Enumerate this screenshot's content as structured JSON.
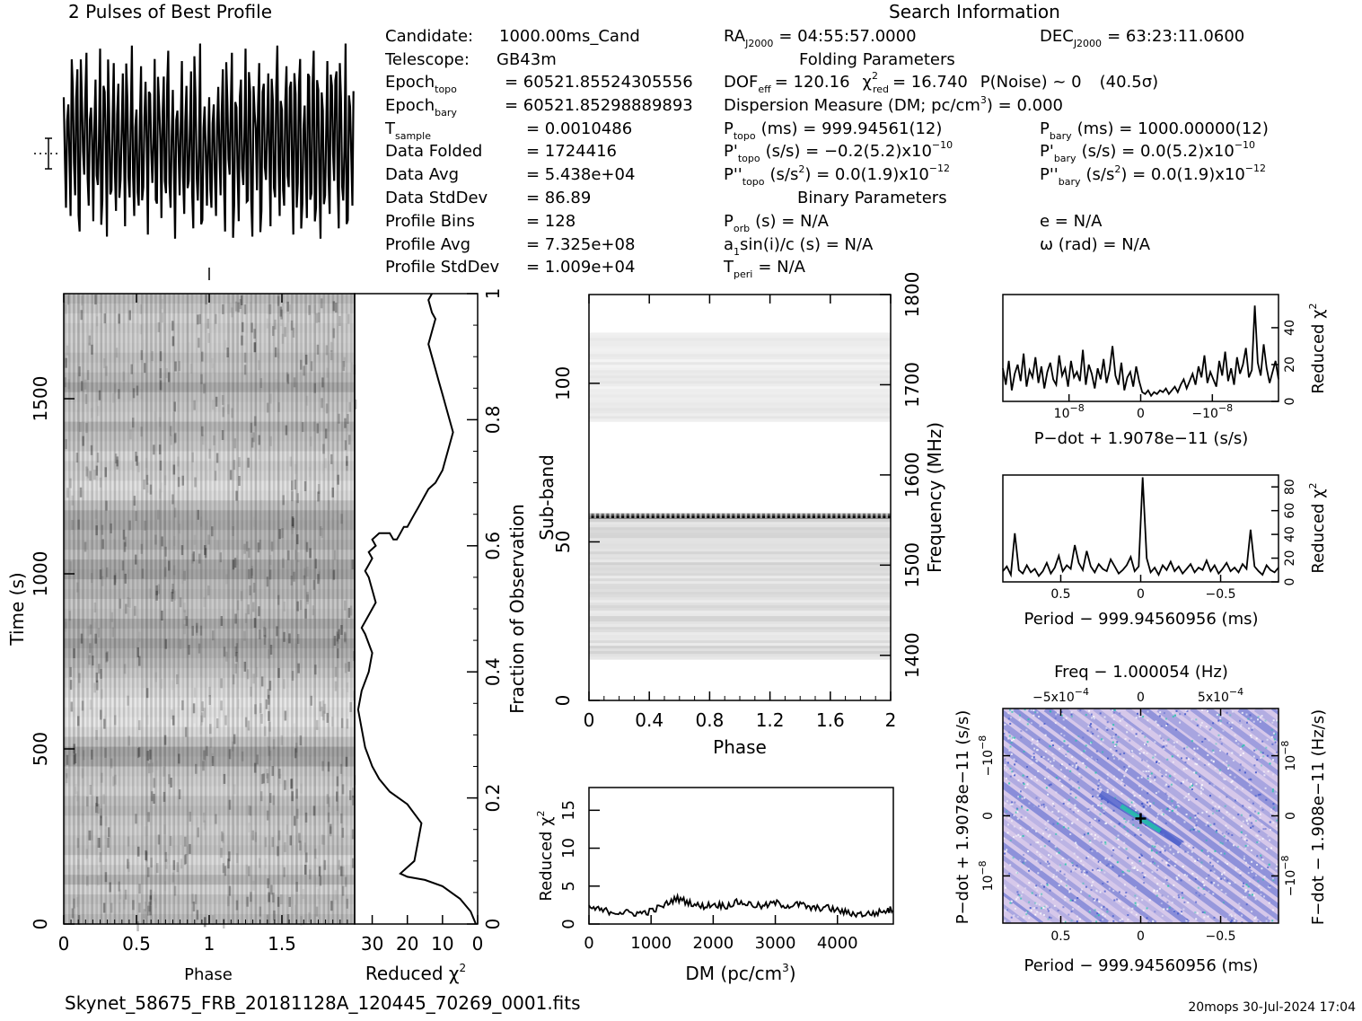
{
  "header": {
    "profile_title": "2 Pulses of Best Profile",
    "search_title": "Search Information",
    "filename": "Skynet_58675_FRB_20181128A_120445_70269_0001.fits",
    "footer_right": "20mops 30-Jul-2024 17:04"
  },
  "info_left": [
    {
      "label": "Candidate:",
      "value": "1000.00ms_Cand"
    },
    {
      "label": "Telescope:",
      "value": "GB43m"
    },
    {
      "label": "Epoch",
      "sub": "topo",
      "value": "= 60521.85524305556"
    },
    {
      "label": "Epoch",
      "sub": "bary",
      "value": "= 60521.85298889893"
    },
    {
      "label": "T",
      "sub": "sample",
      "value": "=  0.0010486"
    },
    {
      "label": "Data Folded",
      "value": "=  1724416"
    },
    {
      "label": "Data Avg",
      "value": "=  5.438e+04"
    },
    {
      "label": "Data StdDev",
      "value": "=  86.89"
    },
    {
      "label": "Profile Bins",
      "value": "=  128"
    },
    {
      "label": "Profile Avg",
      "value": "=  7.325e+08"
    },
    {
      "label": "Profile StdDev",
      "value": "=  1.009e+04"
    }
  ],
  "info_mid": {
    "ra": "RA",
    "ra_sub": "J2000",
    "ra_val": "= 04:55:57.0000",
    "folding_title": "Folding Parameters",
    "dof": "DOF",
    "dof_sub": "eff",
    "dof_val": "= 120.16",
    "chi": "χ",
    "chi_sup": "2",
    "chi_sub": "red",
    "chi_val": "= 16.740",
    "pnoise": "P(Noise) ~ 0",
    "sigma": "(40.5σ)",
    "dm_line": "Dispersion Measure (DM; pc/cm",
    "dm_sup": "3",
    "dm_end": ") = 0.000",
    "p_topo_label": "P",
    "p_topo_sub": "topo",
    "p_topo_val": "(ms) =  999.94561(12)",
    "pd_topo_label": "P'",
    "pd_topo_sub": "topo",
    "pd_topo_val": "(s/s) = −0.2(5.2)x10",
    "pd_topo_exp": "−10",
    "pdd_topo_label": "P''",
    "pdd_topo_sub": "topo",
    "pdd_topo_val": "(s/s",
    "pdd_topo_sup": "2",
    "pdd_topo_rest": ") = 0.0(1.9)x10",
    "pdd_topo_exp": "−12",
    "binary_title": "Binary Parameters",
    "porb": "P",
    "porb_sub": "orb",
    "porb_val": "(s) = N/A",
    "a1": "a",
    "a1_sub": "1",
    "a1_val": "sin(i)/c (s) = N/A",
    "tperi": "T",
    "tperi_sub": "peri",
    "tperi_val": "= N/A"
  },
  "info_right": {
    "dec": "DEC",
    "dec_sub": "J2000",
    "dec_val": "= 63:23:11.0600",
    "p_bary_label": "P",
    "p_bary_sub": "bary",
    "p_bary_val": "(ms) =  1000.00000(12)",
    "pd_bary_label": "P'",
    "pd_bary_sub": "bary",
    "pd_bary_val": "(s/s) = 0.0(5.2)x10",
    "pd_bary_exp": "−10",
    "pdd_bary_label": "P''",
    "pdd_bary_sub": "bary",
    "pdd_bary_val": "(s/s",
    "pdd_bary_sup": "2",
    "pdd_bary_rest": ") = 0.0(1.9)x10",
    "pdd_bary_exp": "−12",
    "e_val": "e = N/A",
    "omega_val": "ω (rad) = N/A"
  },
  "chart_data": [
    {
      "id": "profile",
      "type": "line",
      "title": "2 Pulses of Best Profile",
      "series": [
        {
          "x": [
            0.0,
            0.0156,
            0.0312,
            0.0469,
            0.0625,
            0.0781,
            0.0938,
            0.1094,
            0.125,
            0.1406,
            0.1562,
            0.1719,
            0.1875,
            0.2031,
            0.2188,
            0.2344,
            0.25,
            0.2656,
            0.2812,
            0.2969,
            0.3125,
            0.3281,
            0.3438,
            0.3594,
            0.375,
            0.3906,
            0.4062,
            0.4219,
            0.4375,
            0.4531,
            0.4688,
            0.4844,
            0.5,
            0.5156,
            0.5312,
            0.5469,
            0.5625,
            0.5781,
            0.5938,
            0.6094,
            0.625,
            0.6406,
            0.6562,
            0.6719,
            0.6875,
            0.7031,
            0.7188,
            0.7344,
            0.75,
            0.7656,
            0.7812,
            0.7969,
            0.8125,
            0.8281,
            0.8438,
            0.8594,
            0.875,
            0.8906,
            0.9062,
            0.9219,
            0.9375,
            0.9531,
            0.9688,
            0.9844
          ],
          "values": [
            0.45,
            -0.62,
            0.38,
            -0.7,
            0.55,
            -0.5,
            0.72,
            -0.85,
            0.4,
            -0.3,
            0.88,
            -0.6,
            0.35,
            -0.75,
            0.62,
            -0.4,
            0.92,
            -0.55,
            0.5,
            -0.9,
            0.3,
            -0.45,
            0.78,
            -0.65,
            0.58,
            -0.35,
            0.68,
            -0.8,
            0.42,
            -0.52,
            0.95,
            -0.7,
            0.33,
            -0.6,
            0.75,
            -0.42,
            0.6,
            -0.88,
            0.48,
            -0.38,
            0.82,
            -0.58,
            0.37,
            -0.72,
            0.65,
            -0.48,
            0.9,
            -0.62,
            0.52,
            -0.92,
            0.32,
            -0.5,
            0.8,
            -0.68,
            0.56,
            -0.36,
            0.7,
            -0.82,
            0.44,
            -0.55,
            0.97,
            -0.74,
            0.36,
            -0.6
          ]
        }
      ]
    },
    {
      "id": "time-phase",
      "type": "heatmap",
      "xlabel": "Phase",
      "ylabel": "Time (s)",
      "xlim": [
        0,
        2
      ],
      "ylim": [
        0,
        1800
      ],
      "x_ticks": [
        "0",
        "0.5",
        "1",
        "1.5"
      ],
      "y_ticks": [
        "0",
        "500",
        "1000",
        "1500"
      ],
      "rows": 64,
      "row_darkness": [
        0.55,
        0.45,
        0.5,
        0.35,
        0.6,
        0.4,
        0.3,
        0.5,
        0.45,
        0.38,
        0.42,
        0.55,
        0.48,
        0.35,
        0.4,
        0.45,
        0.7,
        0.75,
        0.5,
        0.3,
        0.2,
        0.25,
        0.2,
        0.3,
        0.35,
        0.45,
        0.55,
        0.65,
        0.75,
        0.6,
        0.7,
        0.5,
        0.45,
        0.6,
        0.55,
        0.75,
        0.7,
        0.5,
        0.65,
        0.6,
        0.72,
        0.68,
        0.5,
        0.3,
        0.25,
        0.35,
        0.4,
        0.3,
        0.45,
        0.5,
        0.62,
        0.4,
        0.45,
        0.5,
        0.7,
        0.55,
        0.45,
        0.5,
        0.4,
        0.38,
        0.42,
        0.35,
        0.45,
        0.55
      ]
    },
    {
      "id": "time-chi2",
      "type": "line",
      "xlabel": "Reduced χ",
      "xlabel_sup": "2",
      "ylabel": "Fraction of Observation",
      "xlim": [
        35,
        0
      ],
      "ylim": [
        0,
        1
      ],
      "x_ticks": [
        "30",
        "20",
        "10",
        "0"
      ],
      "y_ticks": [
        "0",
        "0.2",
        "0.4",
        "0.6",
        "0.8",
        "1"
      ],
      "x": [
        0.5,
        2,
        5,
        10,
        15,
        20,
        22,
        18,
        17,
        16,
        20,
        25,
        28,
        30,
        32,
        33,
        34,
        33,
        31,
        30,
        32,
        33,
        31,
        29,
        30,
        31,
        32,
        31,
        30,
        31,
        29,
        30,
        28,
        27,
        26,
        25,
        24,
        23,
        22,
        21,
        20,
        19,
        18,
        17,
        16,
        15,
        14,
        12,
        10,
        9,
        8,
        7,
        8,
        9,
        10,
        11,
        12,
        13,
        14,
        13,
        12,
        13,
        14,
        13
      ],
      "y": [
        0.0,
        0.02,
        0.04,
        0.06,
        0.07,
        0.075,
        0.08,
        0.1,
        0.13,
        0.16,
        0.19,
        0.21,
        0.23,
        0.25,
        0.28,
        0.31,
        0.34,
        0.37,
        0.4,
        0.43,
        0.46,
        0.47,
        0.49,
        0.51,
        0.53,
        0.55,
        0.56,
        0.57,
        0.58,
        0.59,
        0.6,
        0.61,
        0.62,
        0.62,
        0.62,
        0.62,
        0.61,
        0.61,
        0.62,
        0.63,
        0.63,
        0.64,
        0.65,
        0.66,
        0.67,
        0.68,
        0.69,
        0.7,
        0.72,
        0.74,
        0.76,
        0.78,
        0.8,
        0.82,
        0.84,
        0.86,
        0.88,
        0.9,
        0.92,
        0.94,
        0.96,
        0.97,
        0.99,
        1.0
      ]
    },
    {
      "id": "subband-phase",
      "type": "heatmap",
      "xlabel": "Phase",
      "ylabel": "Sub-band",
      "y2label": "Frequency (MHz)",
      "xlim": [
        0,
        2
      ],
      "ylim": [
        0,
        128
      ],
      "y2lim": [
        1350,
        1800
      ],
      "x_ticks": [
        "0",
        "0.4",
        "0.8",
        "1.2",
        "1.6",
        "2"
      ],
      "y_ticks": [
        "0",
        "50",
        "100"
      ],
      "y2_ticks": [
        "1400",
        "1500",
        "1600",
        "1700",
        "1800"
      ],
      "bands": [
        {
          "from": 13,
          "to": 58,
          "shade": 0.12
        },
        {
          "from": 57.5,
          "to": 59,
          "shade": 0.85
        },
        {
          "from": 88,
          "to": 116,
          "shade": 0.07
        }
      ]
    },
    {
      "id": "dm-chi2",
      "type": "line",
      "xlabel": "DM (pc/cm",
      "xlabel_sup": "3",
      "xlabel_end": ")",
      "ylabel": "Reduced χ",
      "ylabel_sup": "2",
      "xlim": [
        0,
        4900
      ],
      "ylim": [
        0,
        18
      ],
      "x_ticks": [
        "0",
        "1000",
        "2000",
        "3000",
        "4000"
      ],
      "y_ticks": [
        "0",
        "5",
        "10",
        "15"
      ],
      "x": [
        0,
        200,
        400,
        600,
        800,
        1000,
        1200,
        1400,
        1600,
        1800,
        2000,
        2200,
        2400,
        2600,
        2800,
        3000,
        3200,
        3400,
        3600,
        3800,
        4000,
        4200,
        4400,
        4600,
        4800,
        4900
      ],
      "y": [
        2.2,
        1.8,
        1.6,
        1.5,
        1.4,
        1.7,
        2.4,
        3.4,
        2.9,
        2.3,
        2.6,
        2.4,
        2.9,
        2.6,
        2.3,
        2.8,
        2.4,
        2.6,
        2.0,
        2.2,
        1.8,
        1.4,
        1.3,
        1.4,
        1.8,
        2.0
      ]
    },
    {
      "id": "pdot-chi2",
      "type": "line",
      "xlabel": "P−dot + 1.9078e−11 (s/s)",
      "ylabel": "Reduced χ",
      "ylabel_sup": "2",
      "xlim": [
        -1.6e-08,
        1.6e-08
      ],
      "ylim": [
        0,
        58
      ],
      "x_ticks": [
        "10",
        "0",
        "−10"
      ],
      "x_tick_exp": "−8",
      "y_ticks": [
        "0",
        "20",
        "40"
      ],
      "values": [
        18,
        9,
        22,
        6,
        15,
        20,
        11,
        26,
        8,
        17,
        13,
        24,
        10,
        19,
        7,
        16,
        21,
        12,
        9,
        25,
        14,
        18,
        8,
        22,
        13,
        16,
        11,
        28,
        9,
        20,
        15,
        7,
        18,
        12,
        23,
        10,
        17,
        30,
        14,
        9,
        21,
        6,
        13,
        16,
        8,
        19,
        11,
        5,
        4,
        6,
        3,
        5,
        4,
        6,
        5,
        7,
        4,
        6,
        8,
        5,
        9,
        12,
        7,
        11,
        15,
        9,
        19,
        13,
        25,
        10,
        16,
        12,
        8,
        22,
        14,
        27,
        11,
        18,
        9,
        24,
        15,
        20,
        29,
        13,
        17,
        52,
        21,
        14,
        31,
        18,
        10,
        16,
        22,
        12
      ]
    },
    {
      "id": "period-chi2",
      "type": "line",
      "xlabel": "Period − 999.94560956 (ms)",
      "ylabel": "Reduced χ",
      "ylabel_sup": "2",
      "xlim": [
        0.85,
        -0.85
      ],
      "ylim": [
        0,
        90
      ],
      "x_ticks": [
        "0.5",
        "0",
        "−0.5"
      ],
      "y_ticks": [
        "0",
        "20",
        "40",
        "60",
        "80"
      ],
      "values": [
        9,
        13,
        6,
        41,
        10,
        7,
        14,
        8,
        11,
        5,
        9,
        16,
        7,
        12,
        22,
        9,
        14,
        11,
        31,
        16,
        10,
        26,
        13,
        8,
        15,
        11,
        9,
        19,
        13,
        7,
        10,
        14,
        21,
        9,
        13,
        88,
        20,
        8,
        12,
        6,
        14,
        10,
        17,
        9,
        13,
        7,
        11,
        15,
        8,
        12,
        10,
        18,
        9,
        14,
        7,
        11,
        16,
        9,
        12,
        8,
        15,
        11,
        44,
        13,
        9,
        6,
        14,
        10,
        8,
        12
      ]
    },
    {
      "id": "period-pdot",
      "type": "heatmap",
      "title": "Freq − 1.000054 (Hz)",
      "xlabel": "Period − 999.94560956 (ms)",
      "ylabel": "P−dot + 1.9078e−11 (s/s)",
      "y2label": "F−dot − 1.908e−11 (Hz/s)",
      "top_ticks": [
        "−5x10",
        "0",
        "5x10"
      ],
      "top_tick_exp": "−4",
      "x_ticks": [
        "0.5",
        "0",
        "−0.5"
      ],
      "y_ticks": [
        "10",
        "0",
        "−10"
      ],
      "y_tick_exp": "−8",
      "y2_ticks": [
        "−10",
        "0",
        "10"
      ],
      "y2_tick_exp": "−8",
      "colors": {
        "base": "#d6c8ea",
        "stripe": "#3a52c8",
        "hot": "#1ec9a8",
        "peak": "#000000"
      }
    }
  ]
}
